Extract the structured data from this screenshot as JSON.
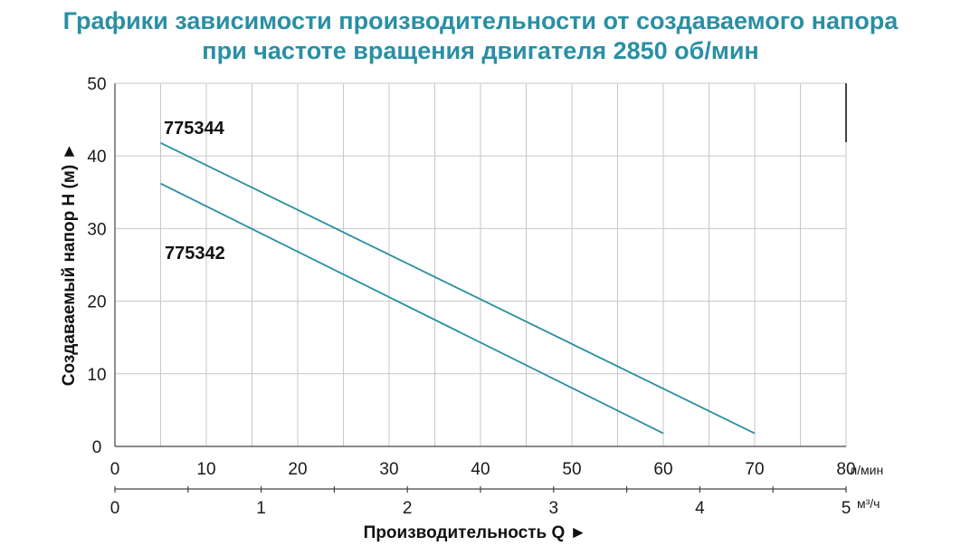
{
  "title_line1": "Графики зависимости производительности от создаваемого напора",
  "title_line2": "при частоте вращения двигателя 2850 об/мин",
  "colors": {
    "title": "#2a8fa3",
    "curve": "#2a8fa3",
    "grid": "#c7c7c7",
    "axis": "#444444"
  },
  "chart_data": {
    "type": "line",
    "title": "Графики зависимости производительности от создаваемого напора при частоте вращения двигателя 2850 об/мин",
    "xlabel": "Производительность Q ►",
    "ylabel": "Создаваемый напор H (м) ►",
    "x_unit": "л/мин",
    "x2_unit": "м³/ч",
    "xlim": [
      0,
      80
    ],
    "ylim": [
      0,
      50
    ],
    "x2lim": [
      0,
      5
    ],
    "xticks": [
      "0",
      "10",
      "20",
      "30",
      "40",
      "50",
      "60",
      "70",
      "80"
    ],
    "yticks": [
      "0",
      "10",
      "20",
      "30",
      "40",
      "50"
    ],
    "x2ticks": [
      "0",
      "1",
      "2",
      "3",
      "4",
      "5"
    ],
    "grid": true,
    "series": [
      {
        "name": "775344",
        "x": [
          5,
          70
        ],
        "y": [
          41.8,
          1.8
        ]
      },
      {
        "name": "775342",
        "x": [
          5,
          60
        ],
        "y": [
          36.2,
          1.8
        ]
      }
    ]
  }
}
